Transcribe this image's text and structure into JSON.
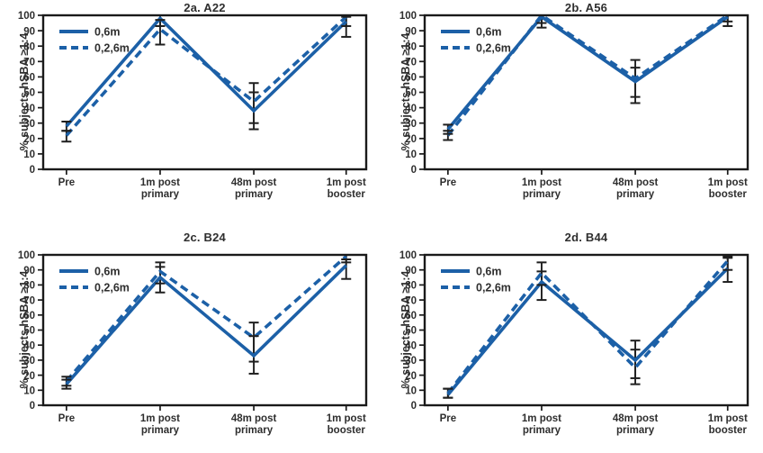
{
  "figure": {
    "background": "#ffffff",
    "ylabel": "% subjects hSBA ≥1:4"
  },
  "colors": {
    "series_blue": "#1c60a7",
    "axis": "#1a1a1a",
    "error": "#1f1f1f",
    "text": "#2e2e2e"
  },
  "chart_data": [
    {
      "type": "line",
      "title": "2a. A22",
      "ylabel": "% subjects hSBA ≥1:4",
      "ylim": [
        0,
        100
      ],
      "ytick_step": 10,
      "grid": false,
      "legend_position": "top-left",
      "categories": [
        "Pre",
        "1m post\nprimary",
        "48m post\nprimary",
        "1m post\nbooster"
      ],
      "series": [
        {
          "name": "0,6m",
          "style": "solid",
          "values": [
            28,
            98,
            38,
            96
          ],
          "ci_low": [
            25,
            93,
            26,
            86
          ],
          "ci_high": [
            31,
            100,
            50,
            99
          ]
        },
        {
          "name": "0,2,6m",
          "style": "dashed",
          "values": [
            22,
            91,
            44,
            99
          ],
          "ci_low": [
            18,
            81,
            30,
            93
          ],
          "ci_high": [
            25,
            97,
            56,
            100
          ]
        }
      ]
    },
    {
      "type": "line",
      "title": "2b. A56",
      "ylabel": "% subjects hSBA ≥1:4",
      "ylim": [
        0,
        100
      ],
      "ytick_step": 10,
      "grid": false,
      "legend_position": "top-left",
      "categories": [
        "Pre",
        "1m post\nprimary",
        "48m post\nprimary",
        "1m post\nbooster"
      ],
      "series": [
        {
          "name": "0,6m",
          "style": "solid",
          "values": [
            26,
            99,
            57,
            99
          ],
          "ci_low": [
            23,
            92,
            43,
            93
          ],
          "ci_high": [
            29,
            100,
            66,
            100
          ]
        },
        {
          "name": "0,2,6m",
          "style": "dashed",
          "values": [
            22,
            100,
            59,
            100
          ],
          "ci_low": [
            19,
            95,
            47,
            96
          ],
          "ci_high": [
            25,
            100,
            71,
            100
          ]
        }
      ]
    },
    {
      "type": "line",
      "title": "2c. B24",
      "ylabel": "% subjects hSBA ≥1:4",
      "ylim": [
        0,
        100
      ],
      "ytick_step": 10,
      "grid": false,
      "legend_position": "top-left",
      "categories": [
        "Pre",
        "1m post\nprimary",
        "48m post\nprimary",
        "1m post\nbooster"
      ],
      "series": [
        {
          "name": "0,6m",
          "style": "solid",
          "values": [
            14,
            85,
            33,
            93
          ],
          "ci_low": [
            11,
            75,
            21,
            84
          ],
          "ci_high": [
            17,
            92,
            46,
            97
          ]
        },
        {
          "name": "0,2,6m",
          "style": "dashed",
          "values": [
            16,
            89,
            45,
            99
          ],
          "ci_low": [
            13,
            81,
            29,
            95
          ],
          "ci_high": [
            19,
            95,
            55,
            100
          ]
        }
      ]
    },
    {
      "type": "line",
      "title": "2d. B44",
      "ylabel": "% subjects hSBA ≥1:4",
      "ylim": [
        0,
        100
      ],
      "ytick_step": 10,
      "grid": false,
      "legend_position": "top-left",
      "categories": [
        "Pre",
        "1m post\nprimary",
        "48m post\nprimary",
        "1m post\nbooster"
      ],
      "series": [
        {
          "name": "0,6m",
          "style": "solid",
          "values": [
            7,
            82,
            30,
            91
          ],
          "ci_low": [
            5,
            70,
            18,
            82
          ],
          "ci_high": [
            11,
            89,
            43,
            98
          ]
        },
        {
          "name": "0,2,6m",
          "style": "dashed",
          "values": [
            8,
            88,
            25,
            96
          ],
          "ci_low": [
            5,
            80,
            14,
            90
          ],
          "ci_high": [
            11,
            95,
            37,
            99
          ]
        }
      ]
    }
  ]
}
